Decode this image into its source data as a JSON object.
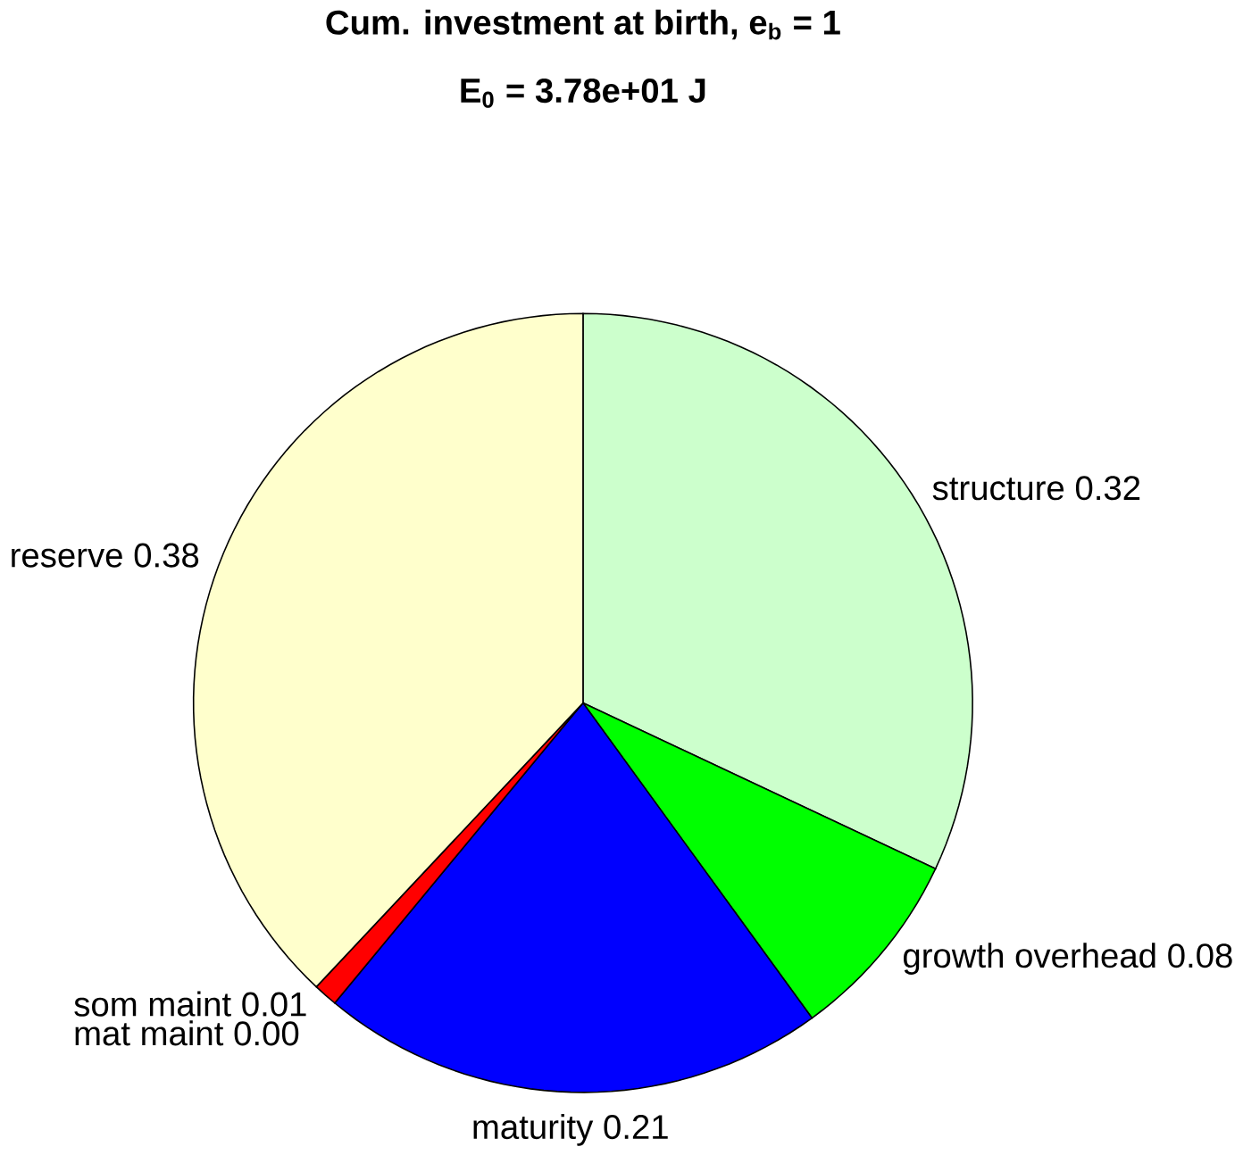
{
  "chart_data": {
    "type": "pie",
    "title": "Cum. investment at birth, e$_{b}$ = 1",
    "subtitle": "E$_{0}$ = 3.78e+01 J",
    "categories": [
      "structure",
      "growth overhead",
      "maturity",
      "mat maint",
      "som maint",
      "reserve"
    ],
    "values": [
      0.32,
      0.08,
      0.21,
      0.0,
      0.01,
      0.38
    ],
    "value_labels": [
      "0.32",
      "0.08",
      "0.21",
      "0.00",
      "0.01",
      "0.38"
    ],
    "colors": [
      "#ccffcc",
      "#00ff00",
      "#0000ff",
      "#ff00ff",
      "#ff0000",
      "#ffffcc"
    ]
  }
}
